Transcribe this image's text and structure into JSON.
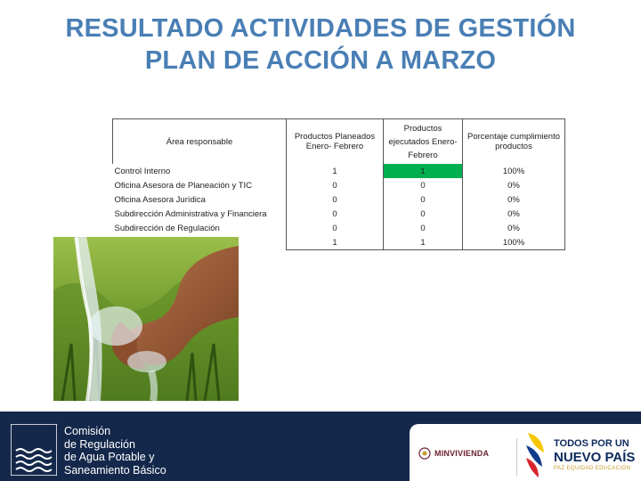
{
  "slide": {
    "title_line1": "RESULTADO ACTIVIDADES DE GESTIÓN",
    "title_line2": "PLAN DE ACCIÓN A MARZO"
  },
  "table": {
    "headers": {
      "area": "Área responsable",
      "planned": "Productos Planeados Enero- Febrero",
      "executed": "Productos ejecutados Enero-Febrero",
      "percent": "Porcentaje cumplimiento productos"
    },
    "rows": [
      {
        "area": "Control Interno",
        "planned": "1",
        "executed": "1",
        "percent": "100%"
      },
      {
        "area": "Oficina Asesora de Planeación y TIC",
        "planned": "0",
        "executed": "0",
        "percent": "0%"
      },
      {
        "area": "Oficina Asesora Jurídica",
        "planned": "0",
        "executed": "0",
        "percent": "0%"
      },
      {
        "area": "Subdirección Administrativa y Financiera",
        "planned": "0",
        "executed": "0",
        "percent": "0%"
      },
      {
        "area": "Subdirección de Regulación",
        "planned": "0",
        "executed": "0",
        "percent": "0%"
      },
      {
        "area": "",
        "planned": "1",
        "executed": "1",
        "percent": "100%"
      }
    ],
    "highlight_color": "#00b050"
  },
  "footer": {
    "cra_line1": "Comisión",
    "cra_line2": "de Regulación",
    "cra_line3": "de Agua Potable y",
    "cra_line4": "Saneamiento Básico",
    "ministry": "MINVIVIENDA",
    "gov_line1": "TODOS POR UN",
    "gov_line2": "NUEVO PAÍS",
    "gov_line3": "PAZ   EQUIDAD   EDUCACIÓN"
  },
  "colors": {
    "title": "#4a7fb5",
    "footer_bg": "#14284b"
  }
}
